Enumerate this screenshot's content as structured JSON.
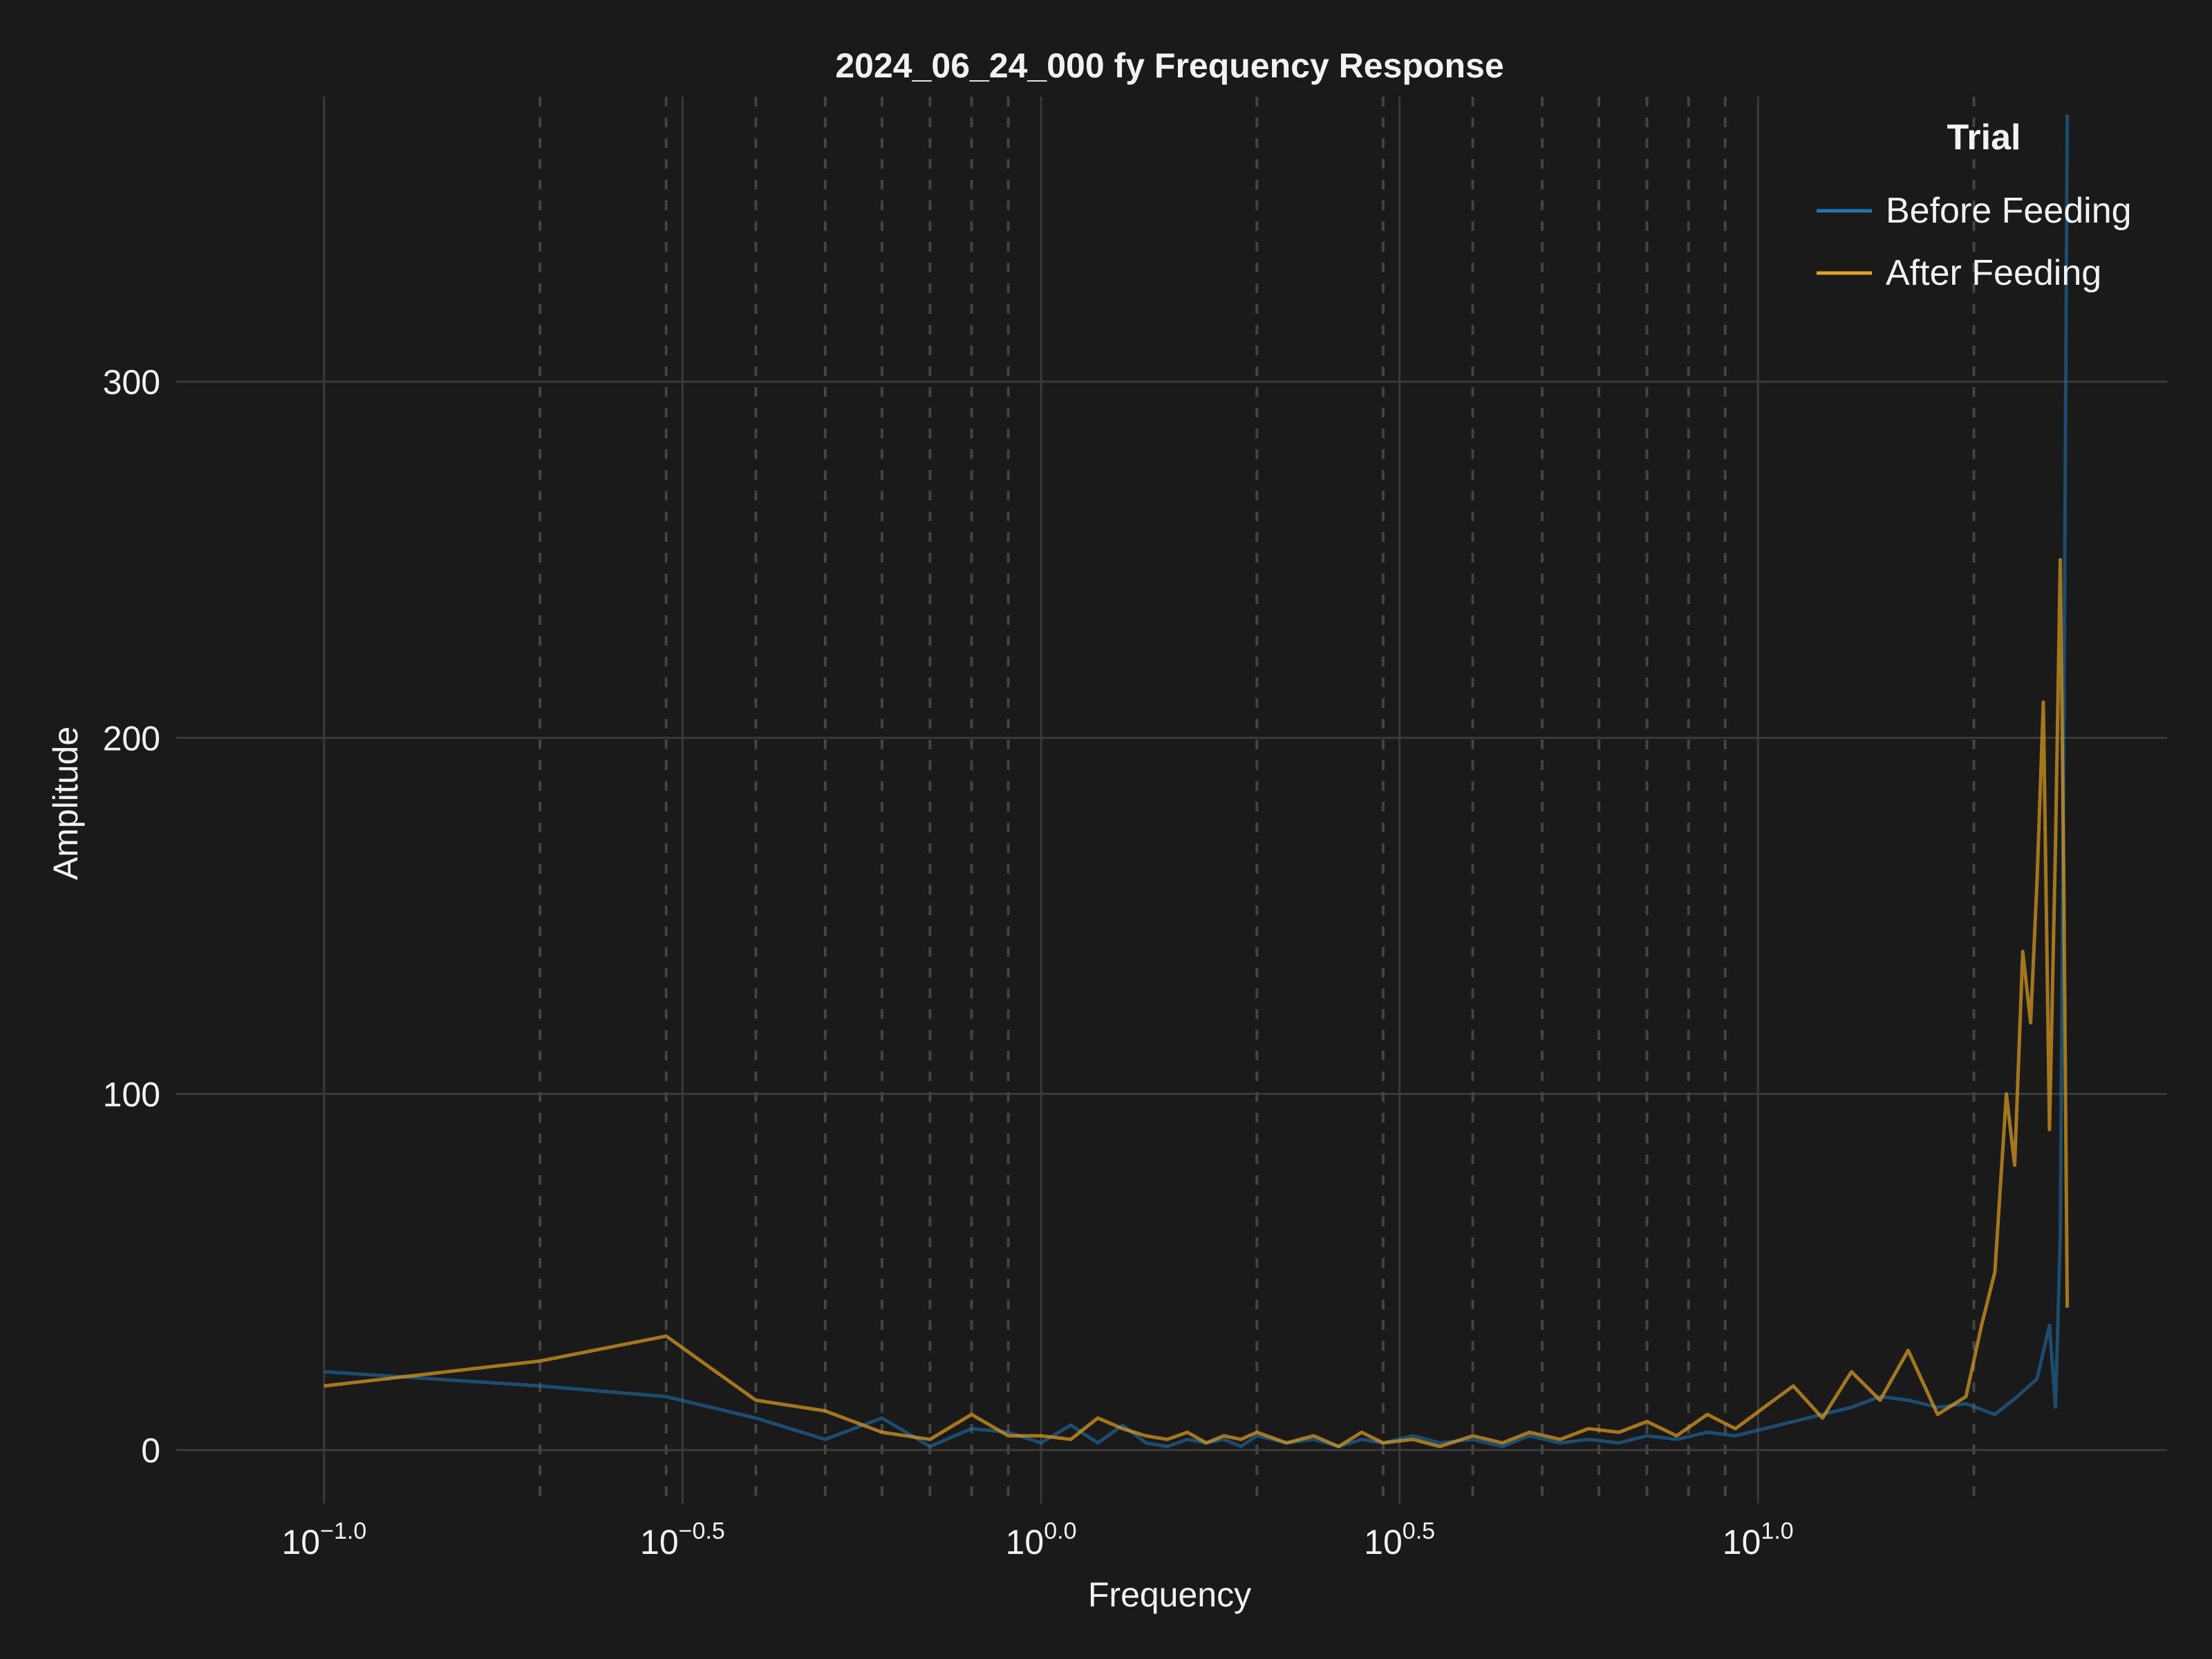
{
  "chart_data": {
    "type": "line",
    "title": "2024_06_24_000 fy Frequency Response",
    "xlabel": "Frequency",
    "ylabel": "Amplitude",
    "xscale": "log10",
    "xlim": [
      0.1,
      27.0
    ],
    "ylim": [
      -15,
      380
    ],
    "x_ticks": [
      {
        "base": "10",
        "exp": "−1.0",
        "value": 0.1
      },
      {
        "base": "10",
        "exp": "−0.5",
        "value": 0.3162
      },
      {
        "base": "10",
        "exp": "0.0",
        "value": 1.0
      },
      {
        "base": "10",
        "exp": "0.5",
        "value": 3.162
      },
      {
        "base": "10",
        "exp": "1.0",
        "value": 10.0
      }
    ],
    "y_ticks": [
      {
        "label": "0",
        "value": 0
      },
      {
        "label": "100",
        "value": 100
      },
      {
        "label": "200",
        "value": 200
      },
      {
        "label": "300",
        "value": 300
      }
    ],
    "grid": true,
    "minor_grid": "dashed",
    "legend": {
      "title": "Trial",
      "position": "top-right",
      "entries": [
        {
          "label": "Before Feeding",
          "color": "#1f77b4"
        },
        {
          "label": "After Feeding",
          "color": "#e0a020"
        }
      ]
    },
    "series": [
      {
        "name": "Before Feeding",
        "color": "#1f77b4",
        "x": [
          0.1,
          0.2,
          0.3,
          0.4,
          0.5,
          0.6,
          0.7,
          0.8,
          0.9,
          1.0,
          1.1,
          1.2,
          1.3,
          1.4,
          1.5,
          1.6,
          1.7,
          1.8,
          1.9,
          2.0,
          2.2,
          2.4,
          2.6,
          2.8,
          3.0,
          3.3,
          3.6,
          4.0,
          4.4,
          4.8,
          5.3,
          5.8,
          6.4,
          7.0,
          7.7,
          8.5,
          9.3,
          10.2,
          11.2,
          12.3,
          13.5,
          14.8,
          16.2,
          17.8,
          19.5,
          21.4,
          23.0,
          24.5,
          25.5,
          26.0,
          26.4,
          26.7,
          27.0
        ],
        "values": [
          22,
          18,
          15,
          9,
          3,
          9,
          1,
          6,
          5,
          2,
          7,
          2,
          7,
          2,
          1,
          3,
          2,
          3,
          1,
          4,
          2,
          3,
          1,
          3,
          2,
          4,
          2,
          3,
          1,
          4,
          2,
          3,
          2,
          4,
          3,
          5,
          4,
          6,
          8,
          10,
          12,
          15,
          14,
          12,
          13,
          10,
          15,
          20,
          35,
          12,
          60,
          200,
          375
        ]
      },
      {
        "name": "After Feeding",
        "color": "#e0a020",
        "x": [
          0.1,
          0.2,
          0.3,
          0.4,
          0.5,
          0.6,
          0.7,
          0.8,
          0.9,
          1.0,
          1.1,
          1.2,
          1.3,
          1.4,
          1.5,
          1.6,
          1.7,
          1.8,
          1.9,
          2.0,
          2.2,
          2.4,
          2.6,
          2.8,
          3.0,
          3.3,
          3.6,
          4.0,
          4.4,
          4.8,
          5.3,
          5.8,
          6.4,
          7.0,
          7.7,
          8.5,
          9.3,
          10.2,
          11.2,
          12.3,
          13.5,
          14.8,
          16.2,
          17.8,
          19.5,
          20.5,
          21.4,
          22.2,
          22.8,
          23.4,
          24.0,
          24.5,
          25.0,
          25.5,
          26.0,
          26.4,
          26.7,
          27.0
        ],
        "values": [
          18,
          25,
          32,
          14,
          11,
          5,
          3,
          10,
          4,
          4,
          3,
          9,
          6,
          4,
          3,
          5,
          2,
          4,
          3,
          5,
          2,
          4,
          1,
          5,
          2,
          3,
          1,
          4,
          2,
          5,
          3,
          6,
          5,
          8,
          4,
          10,
          6,
          12,
          18,
          9,
          22,
          14,
          28,
          10,
          15,
          35,
          50,
          100,
          80,
          140,
          120,
          160,
          210,
          90,
          170,
          250,
          160,
          40
        ]
      }
    ]
  }
}
